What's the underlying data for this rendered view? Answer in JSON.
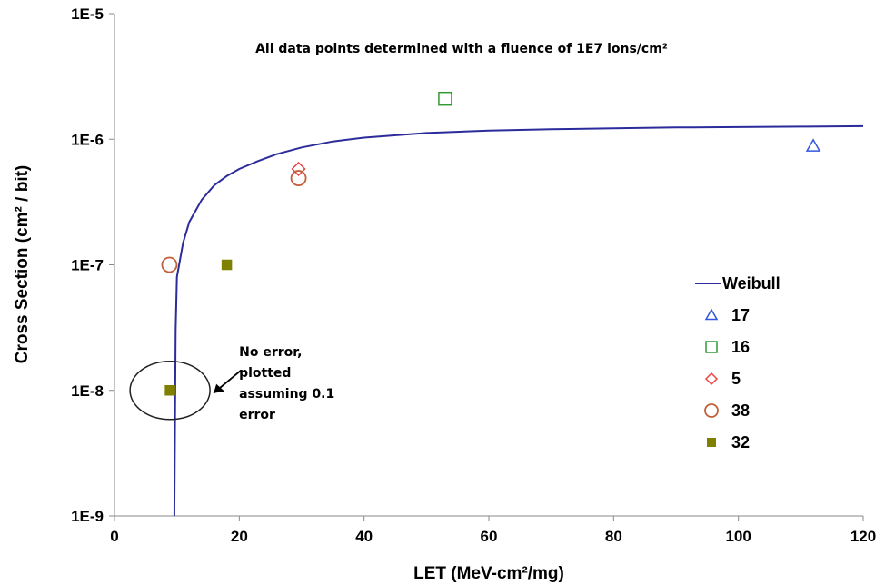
{
  "chart_data": {
    "type": "scatter",
    "annotation_top": "All data points determined with a fluence of 1E7 ions/cm²",
    "xlabel": "LET (MeV-cm²/mg)",
    "ylabel": "Cross Section (cm² / bit)",
    "xlim": [
      0,
      120
    ],
    "ylim": [
      1e-09,
      1e-05
    ],
    "yscale": "log",
    "x_ticks": [
      "0",
      "20",
      "40",
      "60",
      "80",
      "100",
      "120"
    ],
    "y_ticks": [
      "1E-9",
      "1E-8",
      "1E-7",
      "1E-6",
      "1E-5"
    ],
    "legend_position": "right",
    "fit": {
      "name": "Weibull",
      "color": "#2B2B9B",
      "x": [
        9.6,
        9.8,
        10,
        11,
        12,
        14,
        16,
        18,
        20,
        23,
        26,
        30,
        35,
        40,
        50,
        60,
        70,
        80,
        90,
        100,
        110,
        120
      ],
      "y": [
        1e-09,
        3e-08,
        8e-08,
        1.5e-07,
        2.2e-07,
        3.3e-07,
        4.3e-07,
        5.1e-07,
        5.8e-07,
        6.7e-07,
        7.6e-07,
        8.6e-07,
        9.6e-07,
        1.03e-06,
        1.12e-06,
        1.17e-06,
        1.2e-06,
        1.22e-06,
        1.24e-06,
        1.25e-06,
        1.26e-06,
        1.27e-06
      ]
    },
    "series": [
      {
        "name": "17",
        "marker": "triangle",
        "color": "#3355DD",
        "x": [
          112
        ],
        "y": [
          8.8e-07
        ]
      },
      {
        "name": "16",
        "marker": "square-open",
        "color": "#339933",
        "x": [
          53
        ],
        "y": [
          2.1e-06
        ]
      },
      {
        "name": "5",
        "marker": "diamond",
        "color": "#EE4444",
        "x": [
          29.5
        ],
        "y": [
          5.8e-07
        ]
      },
      {
        "name": "38",
        "marker": "circle",
        "color": "#C0603A",
        "x": [
          8.8,
          29.5
        ],
        "y": [
          1e-07,
          4.9e-07
        ]
      },
      {
        "name": "32",
        "marker": "square-filled",
        "color": "#808000",
        "x": [
          8.9,
          18
        ],
        "y": [
          1e-08,
          1e-07
        ]
      }
    ],
    "callout": {
      "lines": [
        "No error,",
        "plotted",
        "assuming 0.1",
        "error"
      ],
      "target_x": 8.9,
      "target_y": 1e-08
    }
  }
}
